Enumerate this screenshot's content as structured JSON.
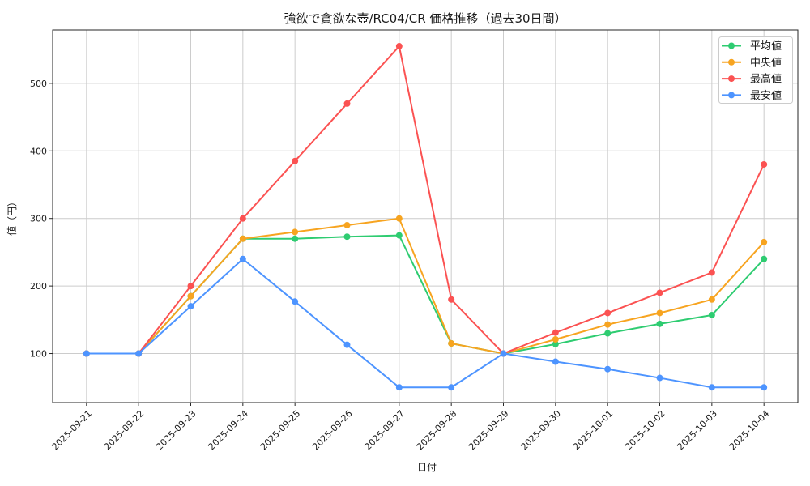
{
  "chart_data": {
    "type": "line",
    "title": "強欲で貪欲な壺/RC04/CR 価格推移（過去30日間）",
    "xlabel": "日付",
    "ylabel": "値（円）",
    "x": [
      "2025-09-21",
      "2025-09-22",
      "2025-09-23",
      "2025-09-24",
      "2025-09-25",
      "2025-09-26",
      "2025-09-27",
      "2025-09-28",
      "2025-09-29",
      "2025-09-30",
      "2025-10-01",
      "2025-10-02",
      "2025-10-03",
      "2025-10-04"
    ],
    "series": [
      {
        "key": "mean",
        "name": "平均値",
        "color": "#2ecc71",
        "values": [
          100,
          100,
          185,
          270,
          270,
          273,
          275,
          115,
          100,
          114,
          130,
          144,
          157,
          240
        ]
      },
      {
        "key": "median",
        "name": "中央値",
        "color": "#f7a420",
        "values": [
          100,
          100,
          185,
          270,
          280,
          290,
          300,
          115,
          100,
          121,
          143,
          160,
          180,
          265
        ]
      },
      {
        "key": "max",
        "name": "最高値",
        "color": "#fb5252",
        "values": [
          100,
          100,
          200,
          300,
          385,
          470,
          555,
          180,
          100,
          131,
          160,
          190,
          220,
          380
        ]
      },
      {
        "key": "min",
        "name": "最安値",
        "color": "#4d94ff",
        "values": [
          100,
          100,
          170,
          240,
          177,
          113,
          50,
          50,
          100,
          88,
          77,
          64,
          50,
          50
        ]
      }
    ],
    "yticks": [
      100,
      200,
      300,
      400,
      500
    ],
    "ylim": [
      27.5,
      579
    ],
    "grid": true,
    "grid_color": "#cccccc",
    "axis_color": "#262626",
    "legend_position": "upper right",
    "legend_border_color": "#cccccc",
    "marker": "circle"
  }
}
